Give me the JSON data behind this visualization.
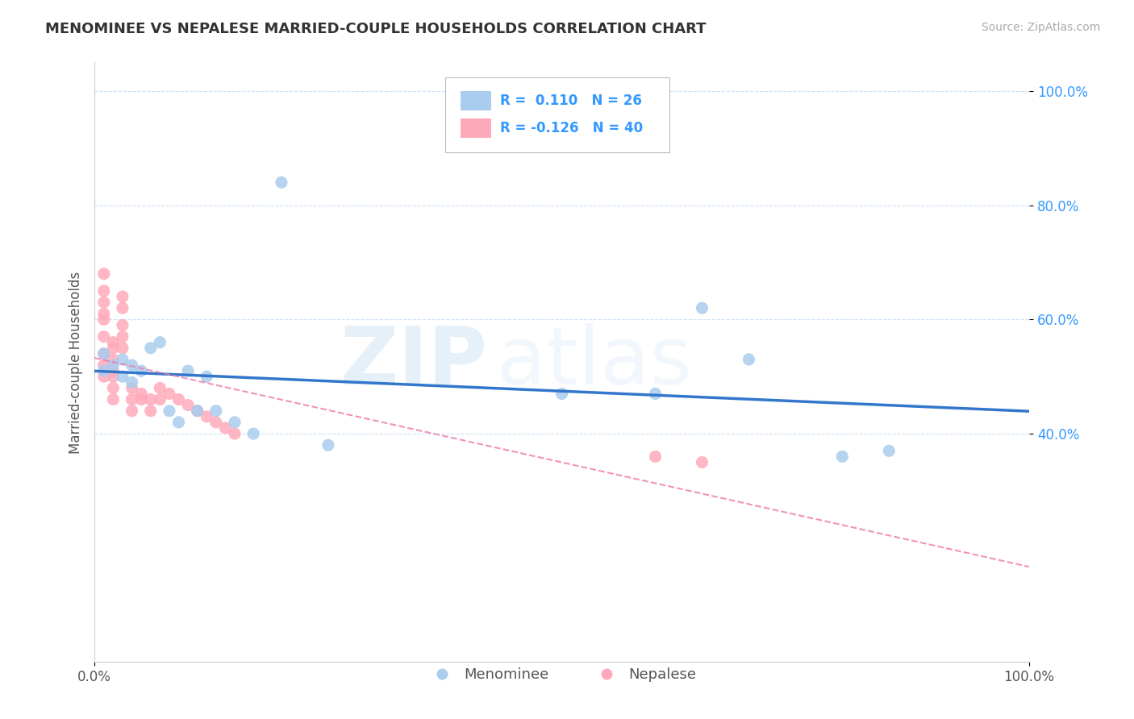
{
  "title": "MENOMINEE VS NEPALESE MARRIED-COUPLE HOUSEHOLDS CORRELATION CHART",
  "source": "Source: ZipAtlas.com",
  "xlabel": "",
  "ylabel": "Married-couple Households",
  "r_menominee": 0.11,
  "n_menominee": 26,
  "r_nepalese": -0.126,
  "n_nepalese": 40,
  "menominee_x": [
    0.01,
    0.01,
    0.02,
    0.03,
    0.03,
    0.04,
    0.04,
    0.05,
    0.06,
    0.07,
    0.08,
    0.09,
    0.1,
    0.11,
    0.12,
    0.13,
    0.15,
    0.17,
    0.2,
    0.25,
    0.5,
    0.6,
    0.65,
    0.7,
    0.8,
    0.85
  ],
  "menominee_y": [
    0.51,
    0.54,
    0.52,
    0.53,
    0.5,
    0.52,
    0.49,
    0.51,
    0.55,
    0.56,
    0.44,
    0.42,
    0.51,
    0.44,
    0.5,
    0.44,
    0.42,
    0.4,
    0.84,
    0.38,
    0.47,
    0.47,
    0.62,
    0.53,
    0.36,
    0.37
  ],
  "nepalese_x": [
    0.01,
    0.01,
    0.01,
    0.01,
    0.01,
    0.01,
    0.01,
    0.01,
    0.01,
    0.02,
    0.02,
    0.02,
    0.02,
    0.02,
    0.02,
    0.02,
    0.03,
    0.03,
    0.03,
    0.03,
    0.03,
    0.04,
    0.04,
    0.04,
    0.05,
    0.05,
    0.06,
    0.06,
    0.07,
    0.07,
    0.08,
    0.09,
    0.1,
    0.11,
    0.12,
    0.13,
    0.14,
    0.15,
    0.6,
    0.65
  ],
  "nepalese_y": [
    0.68,
    0.65,
    0.63,
    0.61,
    0.6,
    0.57,
    0.54,
    0.52,
    0.5,
    0.56,
    0.55,
    0.53,
    0.51,
    0.5,
    0.48,
    0.46,
    0.64,
    0.62,
    0.59,
    0.57,
    0.55,
    0.48,
    0.46,
    0.44,
    0.47,
    0.46,
    0.46,
    0.44,
    0.48,
    0.46,
    0.47,
    0.46,
    0.45,
    0.44,
    0.43,
    0.42,
    0.41,
    0.4,
    0.36,
    0.35
  ],
  "blue_color": "#aaccee",
  "pink_color": "#ffaabb",
  "blue_line_color": "#3377cc",
  "pink_line_color": "#ee77aa",
  "bg_color": "#ffffff",
  "grid_color": "#cccccc",
  "title_color": "#333333",
  "watermark_zip": "ZIP",
  "watermark_atlas": "atlas",
  "legend_r_color": "#3399ff",
  "xlim": [
    0.0,
    1.0
  ],
  "ylim": [
    0.0,
    1.05
  ],
  "yticks": [
    0.4,
    0.6,
    0.8,
    1.0
  ],
  "ytick_labels": [
    "40.0%",
    "60.0%",
    "80.0%",
    "100.0%"
  ],
  "xtick_labels": [
    "0.0%",
    "100.0%"
  ],
  "xticks": [
    0.0,
    1.0
  ]
}
